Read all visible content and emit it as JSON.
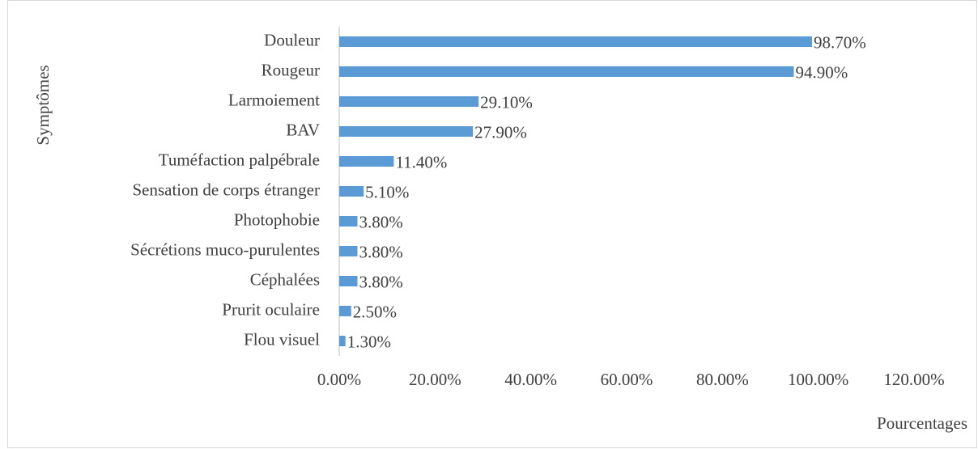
{
  "chart_data": {
    "type": "barh",
    "categories": [
      "Douleur",
      "Rougeur",
      "Larmoiement",
      "BAV",
      "Tuméfaction palpébrale",
      "Sensation de corps étranger",
      "Photophobie",
      "Sécrétions muco-purulentes",
      "Céphalées",
      "Prurit oculaire",
      "Flou visuel"
    ],
    "values": [
      98.7,
      94.9,
      29.1,
      27.9,
      11.4,
      5.1,
      3.8,
      3.8,
      3.8,
      2.5,
      1.3
    ],
    "value_labels": [
      "98.70%",
      "94.90%",
      "29.10%",
      "27.90%",
      "11.40%",
      "5.10%",
      "3.80%",
      "3.80%",
      "3.80%",
      "2.50%",
      "1.30%"
    ],
    "color": "#5b9bd5",
    "xlim": [
      0,
      120
    ],
    "xticks": [
      {
        "value": 0,
        "label": "0.00%"
      },
      {
        "value": 20,
        "label": "20.00%"
      },
      {
        "value": 40,
        "label": "40.00%"
      },
      {
        "value": 60,
        "label": "60.00%"
      },
      {
        "value": 80,
        "label": "80.00%"
      },
      {
        "value": 100,
        "label": "100.00%"
      },
      {
        "value": 120,
        "label": "120.00%"
      }
    ],
    "y_label": "Symptômes",
    "x_label": "Pourcentages",
    "grid": false
  }
}
